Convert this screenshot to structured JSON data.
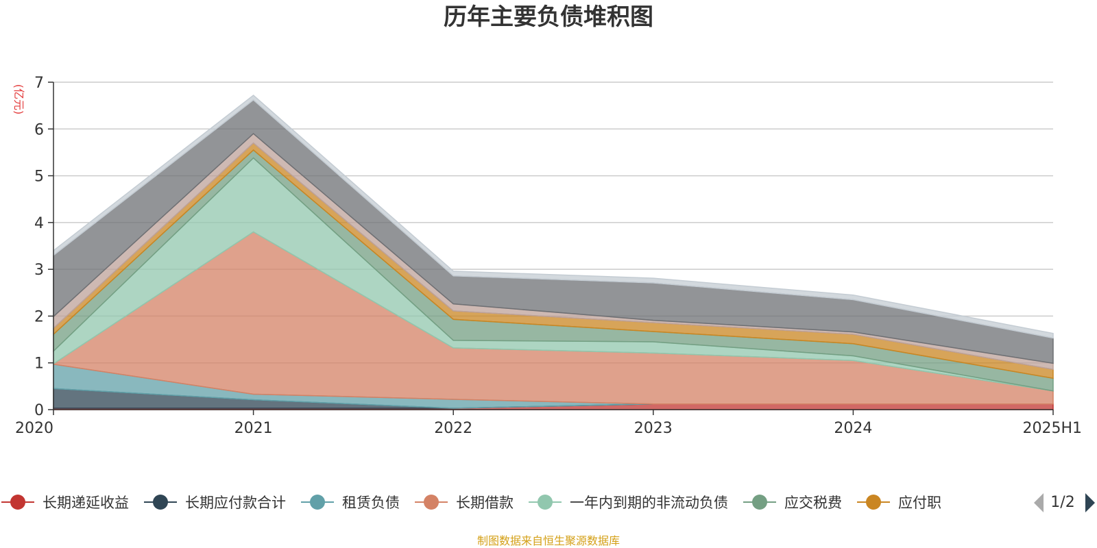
{
  "chart_data": {
    "type": "area",
    "stacked": true,
    "title": "历年主要负债堆积图",
    "y_unit": "(亿元)",
    "source": "制图数据来自恒生聚源数据库",
    "categories": [
      "2020",
      "2021",
      "2022",
      "2023",
      "2024",
      "2025H1"
    ],
    "ylim": [
      0,
      7
    ],
    "yticks": [
      "0",
      "1",
      "2",
      "3",
      "4",
      "5",
      "6",
      "7"
    ],
    "grid": true,
    "legend_position": "bottom",
    "legend_page": "1/2",
    "series": [
      {
        "name": "长期递延收益",
        "color": "#c23531",
        "values": [
          0.03,
          0.03,
          0.03,
          0.12,
          0.12,
          0.12
        ]
      },
      {
        "name": "长期应付款合计",
        "color": "#2f4554",
        "values": [
          0.42,
          0.18,
          0.0,
          0.0,
          0.0,
          0.0
        ]
      },
      {
        "name": "租赁负债",
        "color": "#61a0a8",
        "values": [
          0.52,
          0.12,
          0.19,
          0.0,
          0.0,
          0.0
        ]
      },
      {
        "name": "长期借款",
        "color": "#d48265",
        "values": [
          0.01,
          3.47,
          1.1,
          1.09,
          0.93,
          0.28
        ]
      },
      {
        "name": "一年内到期的非流动负债",
        "color": "#91c7ae",
        "values": [
          0.27,
          1.58,
          0.16,
          0.24,
          0.1,
          0.0
        ]
      },
      {
        "name": "应交税费",
        "color": "#749f83",
        "values": [
          0.36,
          0.17,
          0.45,
          0.22,
          0.26,
          0.27
        ]
      },
      {
        "name": "应付职",
        "color": "#ca8622",
        "values": [
          0.13,
          0.15,
          0.18,
          0.19,
          0.2,
          0.19
        ]
      },
      {
        "name": "",
        "color": "#bda29a",
        "values": [
          0.25,
          0.2,
          0.15,
          0.05,
          0.05,
          0.13
        ]
      },
      {
        "name": "",
        "color": "#6e7074",
        "values": [
          1.31,
          0.72,
          0.6,
          0.8,
          0.69,
          0.54
        ]
      },
      {
        "name": "",
        "color": "#c4ccd3",
        "values": [
          0.1,
          0.1,
          0.1,
          0.1,
          0.1,
          0.1
        ]
      }
    ]
  }
}
